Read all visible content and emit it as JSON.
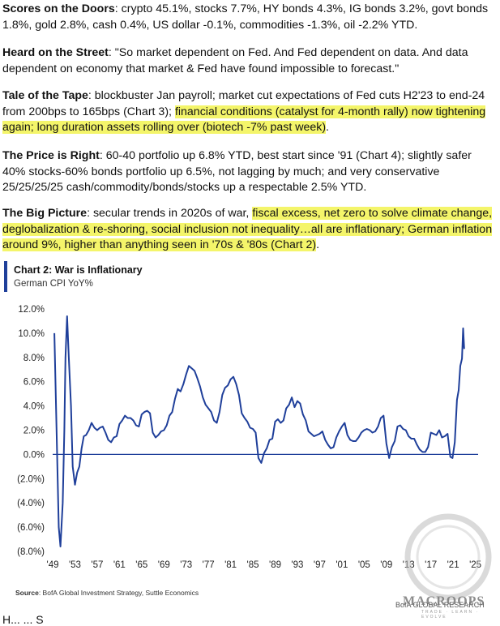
{
  "paragraphs": {
    "p1": {
      "head": "Scores on the Doors",
      "sep": ": ",
      "body": "crypto 45.1%, stocks 7.7%, HY bonds 4.3%, IG bonds 3.2%, govt bonds 1.8%, gold 2.8%, cash 0.4%, US dollar -0.1%, commodities -1.3%, oil -2.2% YTD."
    },
    "p2": {
      "head": "Heard on the Street",
      "sep": ": ",
      "body": "\"So market dependent on Fed. And Fed dependent on data. And data dependent on economy that market & Fed have found impossible to forecast.\""
    },
    "p3": {
      "head": "Tale of the Tape",
      "sep": ": ",
      "body": "blockbuster Jan payroll; market cut expectations of Fed cuts H2'23 to end-24 from 200bps to 165bps (Chart 3); ",
      "highlight": "financial conditions (catalyst for 4-month rally) now tightening again; long duration assets rolling over (biotech -7% past week)",
      "tail": "."
    },
    "p4": {
      "head": "The Price is Right",
      "sep": ": ",
      "body": "60-40 portfolio up 6.8% YTD, best start since '91 (Chart 4); slightly safer 40% stocks-60% bonds portfolio up 6.5%, not lagging by much; and very conservative 25/25/25/25 cash/commodity/bonds/stocks up a respectable 2.5% YTD."
    },
    "p5": {
      "head": "The Big Picture",
      "sep": ": ",
      "body": "secular trends in 2020s of war, ",
      "highlight": "fiscal excess, net zero to solve climate change, deglobalization & re-shoring, social inclusion not inequality…all are inflationary; German inflation around 9%, higher than anything seen in '70s & '80s (Chart 2)",
      "tail": "."
    }
  },
  "chart": {
    "title": "Chart 2: War is Inflationary",
    "subtitle": "German CPI YoY%",
    "source_label": "Source",
    "source_text": ":  BofA Global Investment Strategy, Suttle Economics",
    "credit": "BofA GLOBAL RESEARCH",
    "accent": "#1f3f9a",
    "line_color": "#1f3f9a"
  },
  "watermark": {
    "name": "MACROOPS",
    "tagline": "TRADE · LEARN · EVOLVE"
  },
  "truncated_text": "H... ... S",
  "chart_data": {
    "type": "line",
    "title": "Chart 2: War is Inflationary",
    "ylabel": "German CPI YoY%",
    "xlabel": "",
    "ylim": [
      -8,
      12
    ],
    "xlim": [
      1949,
      2025.5
    ],
    "y_ticks": [
      "12.0%",
      "10.0%",
      "8.0%",
      "6.0%",
      "4.0%",
      "2.0%",
      "0.0%",
      "(2.0%)",
      "(4.0%)",
      "(6.0%)",
      "(8.0%)"
    ],
    "y_tick_values": [
      12,
      10,
      8,
      6,
      4,
      2,
      0,
      -2,
      -4,
      -6,
      -8
    ],
    "x_ticks": [
      "'49",
      "'53",
      "'57",
      "'61",
      "'65",
      "'69",
      "'73",
      "'77",
      "'81",
      "'85",
      "'89",
      "'93",
      "'97",
      "'01",
      "'05",
      "'09",
      "'13",
      "'17",
      "'21",
      "'25"
    ],
    "x_tick_values": [
      1949,
      1953,
      1957,
      1961,
      1965,
      1969,
      1973,
      1977,
      1981,
      1985,
      1989,
      1993,
      1997,
      2001,
      2005,
      2009,
      2013,
      2017,
      2021,
      2025
    ],
    "grid": false,
    "series": [
      {
        "x": [
          1949.3,
          1949.7,
          1950.1,
          1950.4,
          1950.8,
          1951.1,
          1951.3,
          1951.6,
          1951.9,
          1952.3,
          1952.6,
          1953.0,
          1953.4,
          1953.8,
          1954.2,
          1954.6,
          1955.0,
          1955.5,
          1956.0,
          1956.5,
          1957.0,
          1957.5,
          1958.0,
          1958.5,
          1959.0,
          1959.5,
          1960.0,
          1960.5,
          1961.0,
          1961.5,
          1962.0,
          1962.5,
          1963.0,
          1963.5,
          1964.0,
          1964.5,
          1965.0,
          1965.5,
          1966.0,
          1966.5,
          1967.0,
          1967.5,
          1968.0,
          1968.5,
          1969.0,
          1969.5,
          1970.0,
          1970.5,
          1971.0,
          1971.5,
          1972.0,
          1972.5,
          1973.0,
          1973.5,
          1974.0,
          1974.5,
          1975.0,
          1975.5,
          1976.0,
          1976.5,
          1977.0,
          1977.5,
          1978.0,
          1978.5,
          1979.0,
          1979.5,
          1980.0,
          1980.5,
          1981.0,
          1981.5,
          1982.0,
          1982.5,
          1983.0,
          1983.5,
          1984.0,
          1984.5,
          1985.0,
          1985.5,
          1986.0,
          1986.5,
          1987.0,
          1987.5,
          1988.0,
          1988.5,
          1989.0,
          1989.5,
          1990.0,
          1990.5,
          1991.0,
          1991.5,
          1992.0,
          1992.5,
          1993.0,
          1993.5,
          1994.0,
          1994.5,
          1995.0,
          1995.5,
          1996.0,
          1996.5,
          1997.0,
          1997.5,
          1998.0,
          1998.5,
          1999.0,
          1999.5,
          2000.0,
          2000.5,
          2001.0,
          2001.5,
          2002.0,
          2002.5,
          2003.0,
          2003.5,
          2004.0,
          2004.5,
          2005.0,
          2005.5,
          2006.0,
          2006.5,
          2007.0,
          2007.5,
          2008.0,
          2008.5,
          2009.0,
          2009.5,
          2010.0,
          2010.5,
          2011.0,
          2011.5,
          2012.0,
          2012.5,
          2013.0,
          2013.5,
          2014.0,
          2014.5,
          2015.0,
          2015.5,
          2016.0,
          2016.5,
          2017.0,
          2017.5,
          2018.0,
          2018.5,
          2019.0,
          2019.5,
          2020.0,
          2020.5,
          2020.9,
          2021.3,
          2021.7,
          2022.0,
          2022.3,
          2022.6,
          2022.8,
          2023.0
        ],
        "values": [
          10.0,
          2.0,
          -6.0,
          -7.6,
          -4.0,
          2.0,
          8.0,
          11.4,
          8.0,
          4.0,
          -1.0,
          -2.5,
          -1.5,
          -1.0,
          0.5,
          1.5,
          1.6,
          2.0,
          2.6,
          2.2,
          2.0,
          2.2,
          2.3,
          1.8,
          1.2,
          1.0,
          1.4,
          1.5,
          2.5,
          2.8,
          3.2,
          3.0,
          3.0,
          2.8,
          2.4,
          2.3,
          3.3,
          3.5,
          3.6,
          3.4,
          1.8,
          1.4,
          1.6,
          1.9,
          2.0,
          2.4,
          3.2,
          3.5,
          4.6,
          5.4,
          5.2,
          5.8,
          6.6,
          7.3,
          7.1,
          6.9,
          6.3,
          5.6,
          4.7,
          4.1,
          3.8,
          3.5,
          2.8,
          2.6,
          3.5,
          4.9,
          5.5,
          5.7,
          6.2,
          6.4,
          5.8,
          4.9,
          3.4,
          3.0,
          2.7,
          2.2,
          2.1,
          1.8,
          -0.3,
          -0.7,
          0.1,
          0.5,
          1.2,
          1.3,
          2.7,
          2.9,
          2.6,
          2.8,
          3.8,
          4.1,
          4.7,
          3.9,
          4.4,
          4.2,
          3.3,
          2.8,
          1.9,
          1.7,
          1.5,
          1.6,
          1.7,
          1.9,
          1.2,
          0.8,
          0.5,
          0.6,
          1.4,
          1.9,
          2.3,
          2.6,
          1.6,
          1.2,
          1.1,
          1.1,
          1.4,
          1.8,
          2.0,
          2.1,
          2.0,
          1.8,
          1.9,
          2.3,
          3.0,
          3.2,
          0.9,
          -0.3,
          0.6,
          1.1,
          2.3,
          2.4,
          2.1,
          2.0,
          1.5,
          1.3,
          1.3,
          0.8,
          0.4,
          0.2,
          0.2,
          0.6,
          1.8,
          1.7,
          1.6,
          2.0,
          1.4,
          1.5,
          1.7,
          -0.2,
          -0.3,
          1.0,
          4.5,
          5.3,
          7.3,
          7.9,
          10.4,
          8.7
        ]
      }
    ]
  }
}
